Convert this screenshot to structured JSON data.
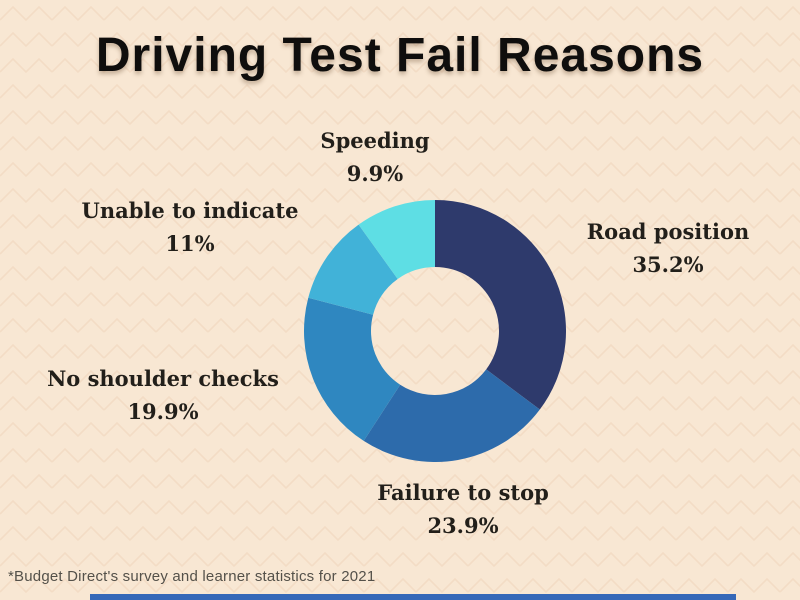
{
  "title": "Driving Test Fail Reasons",
  "footnote": "*Budget Direct's survey and learner statistics for 2021",
  "colors": {
    "background": "#f8e7d3",
    "pattern_line": "#eed3ba",
    "title_text": "#0f0e0d",
    "label_text": "#221f1a",
    "footnote_text": "#54514a",
    "footer_bar": "#3568b8"
  },
  "chart_data": {
    "type": "pie",
    "subtype": "donut",
    "title": "Driving Test Fail Reasons",
    "categories": [
      "Road position",
      "Failure to stop",
      "No shoulder checks",
      "Unable to indicate",
      "Speeding"
    ],
    "values": [
      35.2,
      23.9,
      19.9,
      11,
      9.9
    ],
    "value_labels": [
      "35.2%",
      "23.9%",
      "19.9%",
      "11%",
      "9.9%"
    ],
    "colors": [
      "#2e3a6c",
      "#2d6bab",
      "#2f87c0",
      "#41b2d8",
      "#5edee4"
    ],
    "start_angle_deg": 0,
    "direction": "clockwise",
    "inner_radius_ratio": 0.49,
    "legend": "none",
    "labels_position": "outside"
  }
}
